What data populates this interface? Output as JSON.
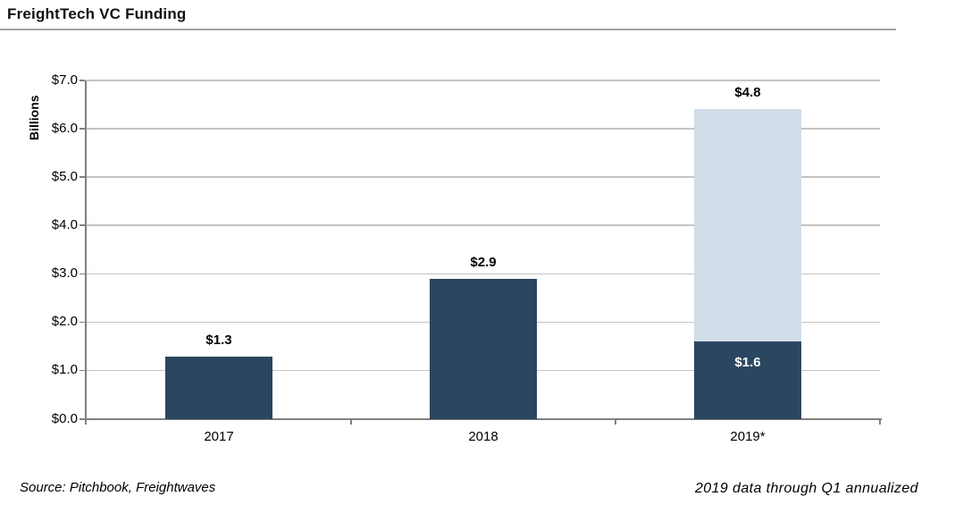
{
  "header": {
    "title": "FreightTech VC Funding"
  },
  "footer": {
    "source": "Source: Pitchbook, Freightwaves",
    "note": "2019 data through Q1 annualized"
  },
  "chart_data": {
    "type": "bar",
    "stacked": true,
    "title": "FreightTech VC Funding",
    "ylabel": "Billions",
    "xlabel": "",
    "ylim": [
      0,
      7
    ],
    "ytick_step": 1,
    "yticks": [
      "$0.0",
      "$1.0",
      "$2.0",
      "$3.0",
      "$4.0",
      "$5.0",
      "$6.0",
      "$7.0"
    ],
    "grid": true,
    "legend": "none",
    "categories": [
      "2017",
      "2018",
      "2019*"
    ],
    "series": [
      {
        "name": "actual-funding",
        "color": "#2b4660",
        "values": [
          1.3,
          2.9,
          1.6
        ]
      },
      {
        "name": "annualized-projection",
        "color": "#d1dde9",
        "values": [
          0,
          0,
          4.8
        ]
      }
    ],
    "bar_labels": [
      {
        "cat": 0,
        "text": "$1.3",
        "placement": "above"
      },
      {
        "cat": 1,
        "text": "$2.9",
        "placement": "above"
      },
      {
        "cat": 2,
        "text": "$4.8",
        "placement": "above"
      },
      {
        "cat": 2,
        "text": "$1.6",
        "placement": "inside",
        "series": 0,
        "color": "#ffffff"
      }
    ]
  }
}
